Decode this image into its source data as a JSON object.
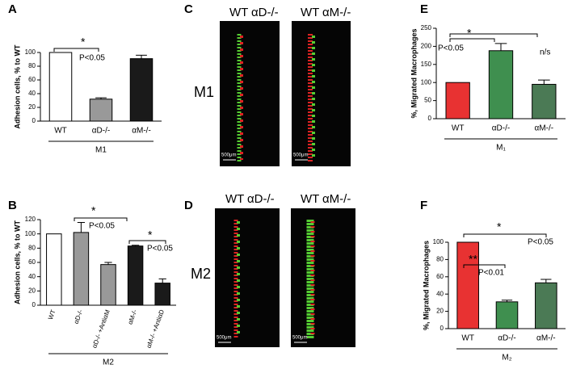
{
  "panels": {
    "letters": [
      "A",
      "B",
      "C",
      "D",
      "E",
      "F"
    ],
    "micro": {
      "C": {
        "row": "M1",
        "left": [
          "WT",
          "αD-/-"
        ],
        "right": [
          "WT",
          "αM-/-"
        ],
        "scale": [
          "500μm",
          "500μm"
        ]
      },
      "D": {
        "row": "M2",
        "left": [
          "WT",
          "αD-/-"
        ],
        "right": [
          "WT",
          "αM-/-"
        ],
        "scale": [
          "500μm",
          "500μm"
        ]
      }
    }
  },
  "chart_data": [
    {
      "type": "bar",
      "y_label": "Adhesion cells, % to WT",
      "group_label": "M1",
      "categories": [
        "WT",
        "αD-/-",
        "αM-/-"
      ],
      "values": [
        100,
        32,
        91
      ],
      "errors": [
        0,
        2,
        5
      ],
      "colors": [
        "#ffffff",
        "#999999",
        "#1a1a1a"
      ],
      "ylim": [
        0,
        100
      ],
      "yticks": [
        0,
        20,
        40,
        60,
        80,
        100
      ],
      "annotations": [
        "*",
        "P<0.05"
      ]
    },
    {
      "type": "bar",
      "y_label": "Adhesion cells, % to WT",
      "group_label": "M2",
      "categories": [
        "WT",
        "αD-/-",
        "αD-/- +AntiαM",
        "αM-/-",
        "αM-/- +AntiαD"
      ],
      "values": [
        100,
        102,
        57,
        83,
        31
      ],
      "errors": [
        0,
        14,
        3,
        1,
        6
      ],
      "colors": [
        "#ffffff",
        "#999999",
        "#999999",
        "#1a1a1a",
        "#1a1a1a"
      ],
      "ylim": [
        0,
        120
      ],
      "yticks": [
        0,
        20,
        40,
        60,
        80,
        100,
        120
      ],
      "annotations": [
        "*",
        "P<0.05",
        "*",
        "P<0.05"
      ]
    },
    {
      "type": "bar",
      "y_label": "%, Migrated Macrophages",
      "group_label": "M₁",
      "categories": [
        "WT",
        "αD-/-",
        "αM-/-"
      ],
      "values": [
        100,
        188,
        95
      ],
      "errors": [
        0,
        20,
        12
      ],
      "colors": [
        "#e83232",
        "#3f8f4f",
        "#4b7a55"
      ],
      "ylim": [
        0,
        250
      ],
      "yticks": [
        0,
        50,
        100,
        150,
        200,
        250
      ],
      "annotations": [
        "*",
        "P<0.05",
        "n/s"
      ]
    },
    {
      "type": "bar",
      "y_label": "%, Migrated Macrophages",
      "group_label": "M₂",
      "categories": [
        "WT",
        "αD-/-",
        "αM-/-"
      ],
      "values": [
        100,
        31,
        53
      ],
      "errors": [
        0,
        2,
        4
      ],
      "colors": [
        "#e83232",
        "#3f8f4f",
        "#4b7a55"
      ],
      "ylim": [
        0,
        100
      ],
      "yticks": [
        0,
        20,
        40,
        60,
        80,
        100
      ],
      "annotations": [
        "**",
        "P<0.01",
        "*",
        "P<0.05"
      ]
    }
  ]
}
